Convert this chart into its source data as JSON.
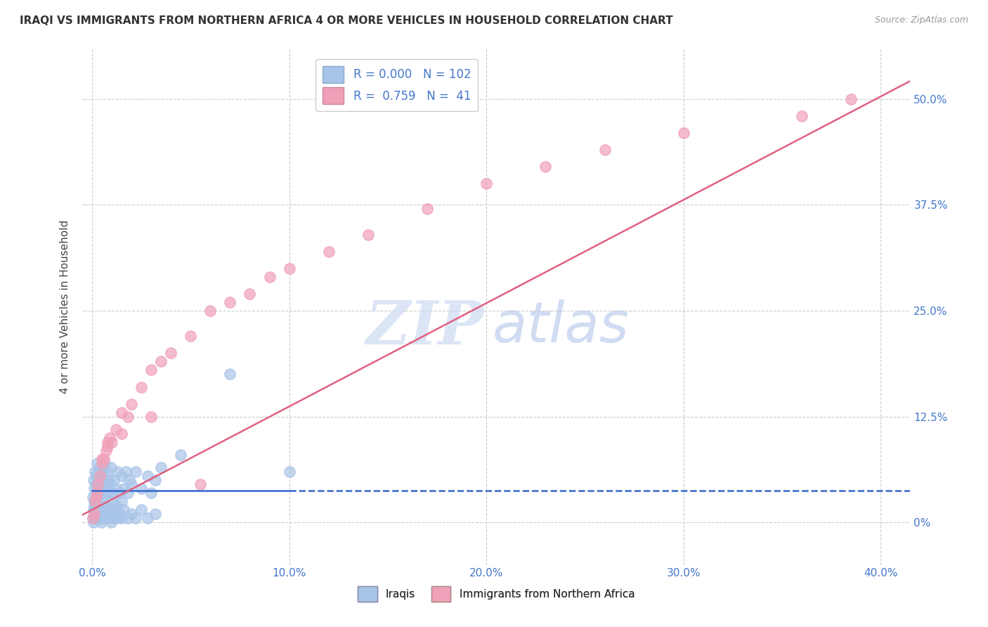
{
  "title": "IRAQI VS IMMIGRANTS FROM NORTHERN AFRICA 4 OR MORE VEHICLES IN HOUSEHOLD CORRELATION CHART",
  "source": "Source: ZipAtlas.com",
  "xlabel_vals": [
    0.0,
    10.0,
    20.0,
    30.0,
    40.0
  ],
  "ylabel_vals": [
    0.0,
    12.5,
    25.0,
    37.5,
    50.0
  ],
  "xlim": [
    -0.5,
    41.5
  ],
  "ylim": [
    -5.0,
    56.0
  ],
  "ylabel": "4 or more Vehicles in Household",
  "iraqis_color": "#a8c4e8",
  "africa_color": "#f0a0b8",
  "iraqis_R": 0.0,
  "africa_R": 0.759,
  "iraqis_N": 102,
  "africa_N": 41,
  "background_color": "#ffffff",
  "grid_color": "#cccccc",
  "tick_color": "#4477cc",
  "blue_line_color": "#3366cc",
  "pink_line_color": "#e06080",
  "watermark_zip_color": "#c8d8f0",
  "watermark_atlas_color": "#a8c0e8",
  "iraqis_x": [
    0.05,
    0.08,
    0.1,
    0.12,
    0.15,
    0.18,
    0.2,
    0.22,
    0.25,
    0.28,
    0.3,
    0.32,
    0.35,
    0.38,
    0.4,
    0.42,
    0.45,
    0.5,
    0.55,
    0.6,
    0.65,
    0.7,
    0.75,
    0.8,
    0.85,
    0.9,
    0.95,
    1.0,
    1.1,
    1.2,
    1.3,
    1.4,
    1.5,
    1.6,
    1.7,
    1.8,
    1.9,
    2.0,
    2.2,
    2.5,
    2.8,
    3.0,
    3.2,
    3.5,
    0.05,
    0.07,
    0.1,
    0.13,
    0.16,
    0.2,
    0.25,
    0.3,
    0.35,
    0.4,
    0.5,
    0.6,
    0.7,
    0.8,
    0.9,
    1.0,
    1.1,
    1.2,
    1.3,
    1.4,
    1.5,
    0.08,
    0.1,
    0.12,
    0.15,
    0.18,
    0.2,
    0.25,
    0.3,
    0.35,
    0.4,
    0.45,
    0.5,
    0.55,
    0.6,
    0.65,
    0.7,
    0.75,
    0.8,
    0.85,
    0.9,
    0.95,
    1.0,
    1.1,
    1.2,
    1.3,
    1.4,
    1.5,
    1.6,
    1.8,
    2.0,
    2.2,
    2.5,
    2.8,
    3.2,
    10.0,
    7.0,
    4.5
  ],
  "iraqis_y": [
    3.0,
    5.0,
    2.5,
    4.0,
    6.0,
    3.5,
    5.5,
    4.5,
    7.0,
    3.0,
    5.0,
    4.0,
    6.5,
    3.5,
    5.0,
    4.5,
    6.0,
    4.0,
    5.5,
    3.5,
    7.0,
    4.0,
    6.0,
    3.5,
    5.0,
    4.5,
    6.5,
    3.5,
    5.0,
    4.0,
    6.0,
    3.5,
    5.5,
    4.0,
    6.0,
    3.5,
    5.0,
    4.5,
    6.0,
    4.0,
    5.5,
    3.5,
    5.0,
    6.5,
    0.5,
    1.5,
    2.0,
    0.8,
    1.8,
    2.5,
    1.0,
    2.0,
    1.5,
    0.8,
    2.5,
    1.2,
    2.0,
    1.5,
    0.8,
    2.5,
    1.0,
    2.0,
    1.5,
    0.8,
    2.5,
    0.0,
    1.0,
    0.5,
    1.5,
    0.5,
    1.0,
    0.5,
    1.5,
    0.5,
    1.0,
    0.0,
    1.5,
    0.5,
    1.0,
    0.5,
    1.5,
    0.5,
    1.0,
    0.5,
    1.5,
    0.0,
    1.0,
    0.5,
    1.5,
    0.5,
    1.0,
    0.5,
    1.5,
    0.5,
    1.0,
    0.5,
    1.5,
    0.5,
    1.0,
    6.0,
    17.5,
    8.0
  ],
  "africa_x": [
    0.05,
    0.1,
    0.15,
    0.2,
    0.3,
    0.4,
    0.5,
    0.6,
    0.7,
    0.8,
    0.9,
    1.0,
    1.2,
    1.5,
    1.8,
    2.0,
    2.5,
    3.0,
    3.5,
    4.0,
    5.0,
    6.0,
    7.0,
    8.0,
    9.0,
    10.0,
    12.0,
    14.0,
    17.0,
    20.0,
    23.0,
    26.0,
    30.0,
    36.0,
    38.5,
    0.25,
    0.5,
    0.8,
    1.5,
    3.0,
    5.5
  ],
  "africa_y": [
    0.5,
    1.0,
    2.5,
    3.0,
    4.5,
    5.5,
    7.0,
    7.5,
    8.5,
    9.0,
    10.0,
    9.5,
    11.0,
    13.0,
    12.5,
    14.0,
    16.0,
    18.0,
    19.0,
    20.0,
    22.0,
    25.0,
    26.0,
    27.0,
    29.0,
    30.0,
    32.0,
    34.0,
    37.0,
    40.0,
    42.0,
    44.0,
    46.0,
    48.0,
    50.0,
    3.5,
    7.5,
    9.5,
    10.5,
    12.5,
    4.5
  ],
  "iraqis_trend_y": 3.8,
  "africa_trend_slope": 1.22,
  "africa_trend_intercept": 1.5,
  "blue_solid_end_x": 10.0
}
